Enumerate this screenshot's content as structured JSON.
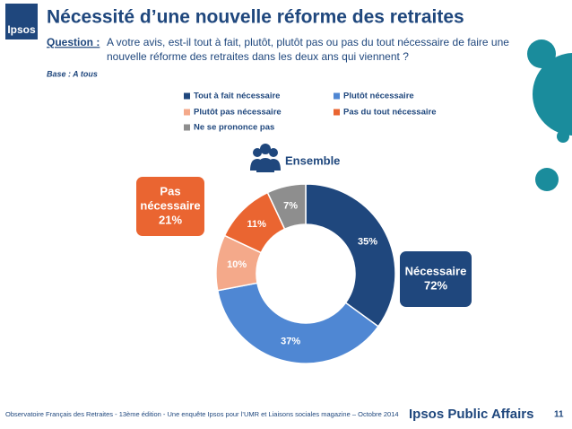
{
  "header": {
    "logo": "Ipsos",
    "title": "Nécessité d’une nouvelle réforme des retraites",
    "question_label": "Question :",
    "question_lines": [
      "A votre avis, est-il tout à fait, plutôt, plutôt pas ou pas du tout nécessaire de faire une",
      "nouvelle réforme des retraites dans les deux ans qui viennent ?"
    ],
    "base": "Base : A tous"
  },
  "chart_data": {
    "type": "donut",
    "center_label": "Ensemble",
    "categories": [
      "Tout à fait nécessaire",
      "Plutôt nécessaire",
      "Plutôt pas nécessaire",
      "Pas du tout nécessaire",
      "Ne se prononce pas"
    ],
    "values": [
      35,
      37,
      10,
      11,
      7
    ],
    "value_labels": [
      "35%",
      "37%",
      "10%",
      "11%",
      "7%"
    ],
    "colors": [
      "#1f477d",
      "#4f87d3",
      "#f4a98a",
      "#ea6531",
      "#8e8e8e"
    ],
    "annotations": [
      {
        "lines": [
          "Pas",
          "nécessaire"
        ],
        "value": 21,
        "label": "21%",
        "color": "#ea6531"
      },
      {
        "lines": [
          "Nécessaire"
        ],
        "value": 72,
        "label": "72%",
        "color": "#1f477d"
      }
    ]
  },
  "footer": {
    "source": "Observatoire Français des Retraites - 13ème édition - Une enquête Ipsos pour  l’UMR et Liaisons sociales magazine – Octobre 2014",
    "brand": "Ipsos Public Affairs",
    "page": "11"
  }
}
